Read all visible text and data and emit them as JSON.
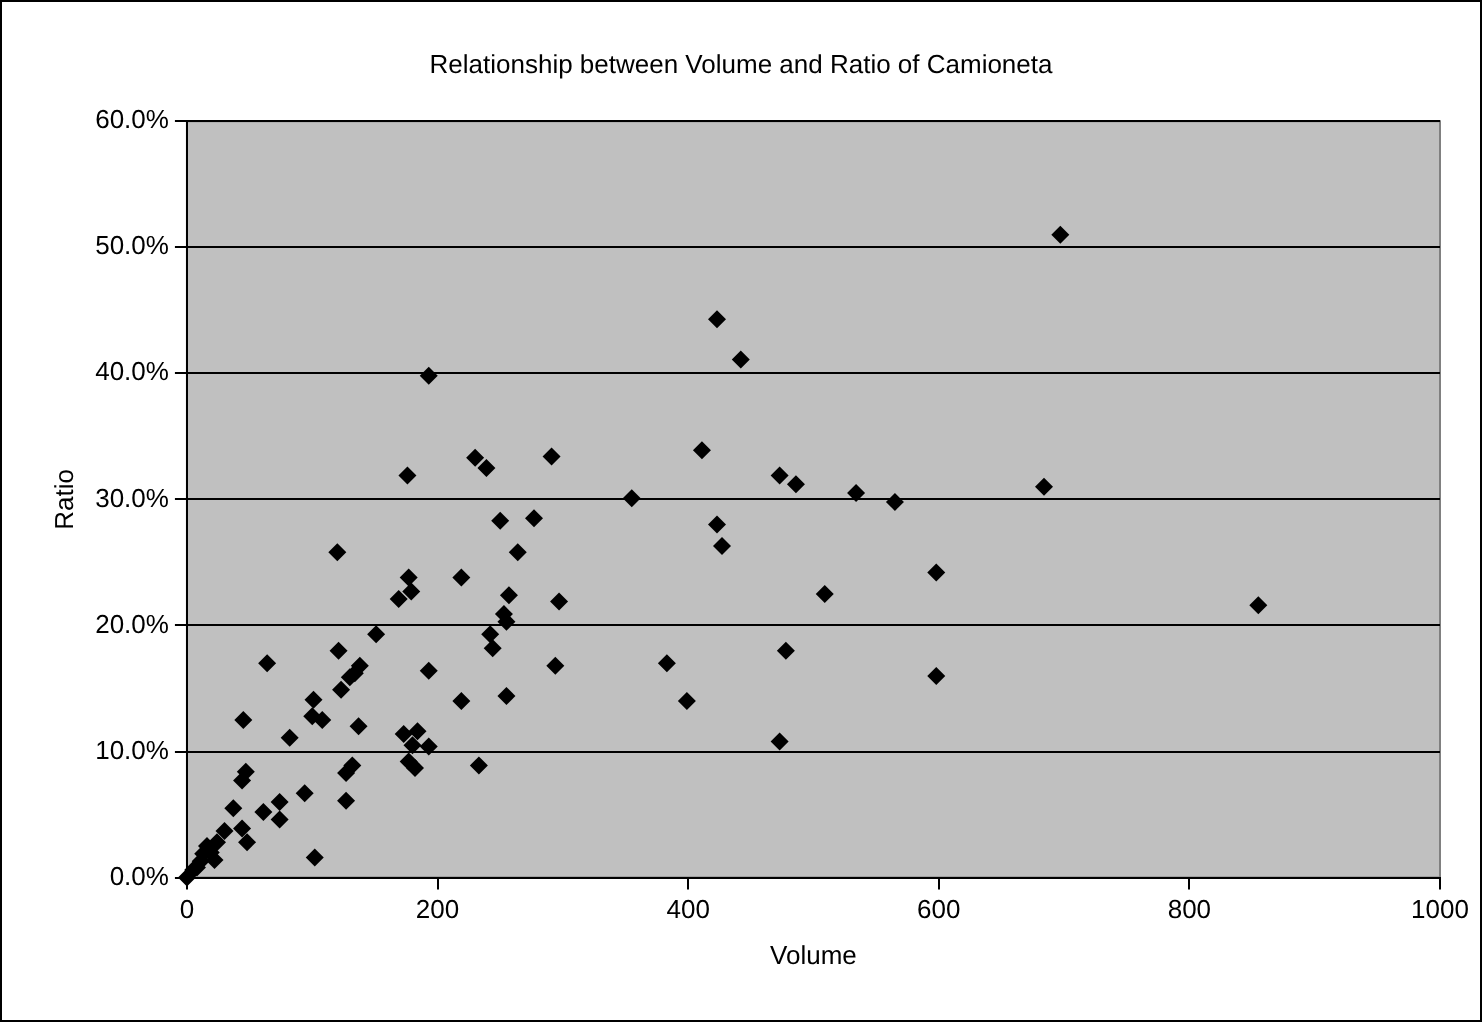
{
  "chart_data": {
    "type": "scatter",
    "title": "Relationship between Volume and Ratio of Camioneta",
    "xlabel": "Volume",
    "ylabel": "Ratio",
    "xlim": [
      0,
      1000
    ],
    "xticks": [
      0,
      200,
      400,
      600,
      800,
      1000
    ],
    "ylim": [
      0,
      60
    ],
    "yticks": [
      {
        "value": 0,
        "label": "0.0%"
      },
      {
        "value": 10,
        "label": "10.0%"
      },
      {
        "value": 20,
        "label": "20.0%"
      },
      {
        "value": 30,
        "label": "30.0%"
      },
      {
        "value": 40,
        "label": "40.0%"
      },
      {
        "value": 50,
        "label": "50.0%"
      },
      {
        "value": 60,
        "label": "60.0%"
      }
    ],
    "grid": "y",
    "legend": false,
    "marker": "diamond",
    "series": [
      {
        "color": "#000000",
        "x": [
          193,
          176,
          230,
          239,
          291,
          355,
          411,
          120,
          250,
          277,
          264,
          177,
          219,
          169,
          179,
          257,
          297,
          253,
          255,
          151,
          242,
          244,
          64,
          121,
          138,
          134,
          130,
          123,
          193,
          294,
          383,
          101,
          100,
          108,
          45,
          219,
          255,
          399,
          82,
          137,
          173,
          184,
          180,
          193,
          177,
          182,
          233,
          132,
          127,
          47,
          44,
          94,
          127,
          74,
          74,
          61,
          37,
          102,
          44,
          48,
          30,
          24,
          19,
          13,
          11,
          8,
          0,
          5,
          22,
          16,
          697,
          423,
          442,
          473,
          486,
          534,
          565,
          684,
          423,
          427,
          509,
          598,
          478,
          598,
          473,
          855
        ],
        "values": [
          39.8,
          31.9,
          33.3,
          32.5,
          33.4,
          30.1,
          33.9,
          25.8,
          28.3,
          28.5,
          25.8,
          23.8,
          23.8,
          22.1,
          22.7,
          22.4,
          21.9,
          20.9,
          20.3,
          19.3,
          19.3,
          18.2,
          17.0,
          18.0,
          16.8,
          16.2,
          15.9,
          14.9,
          16.4,
          16.8,
          17.0,
          14.1,
          12.8,
          12.5,
          12.5,
          14.0,
          14.4,
          14.0,
          11.1,
          12.0,
          11.4,
          11.6,
          10.5,
          10.4,
          9.2,
          8.7,
          8.9,
          8.9,
          8.3,
          8.4,
          7.7,
          6.7,
          6.1,
          6.0,
          4.6,
          5.2,
          5.5,
          1.6,
          3.9,
          2.8,
          3.7,
          2.8,
          2.0,
          1.9,
          1.3,
          0.8,
          0.0,
          0.6,
          1.4,
          2.5,
          51.0,
          44.3,
          41.1,
          31.9,
          31.2,
          30.5,
          29.8,
          31.0,
          28.0,
          26.3,
          22.5,
          24.2,
          18.0,
          16.0,
          10.8,
          21.6
        ]
      }
    ]
  }
}
